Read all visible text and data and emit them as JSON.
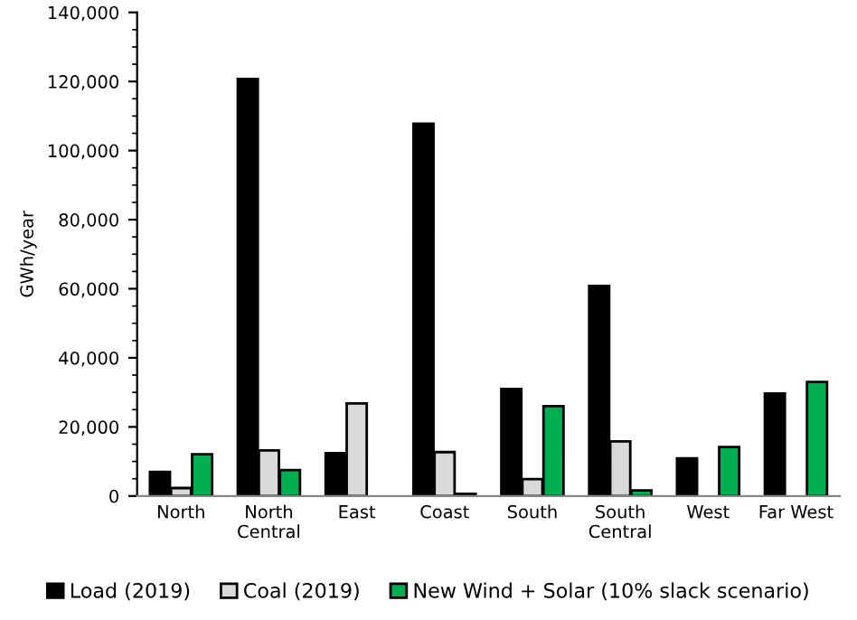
{
  "chart_data": {
    "type": "bar",
    "ylabel": "GWh/year",
    "categories": [
      "North",
      "North\nCentral",
      "East",
      "Coast",
      "South",
      "South\nCentral",
      "West",
      "Far West"
    ],
    "series": [
      {
        "name": "Load (2019)",
        "color": "#000000",
        "values": [
          7000,
          120700,
          12400,
          107800,
          31000,
          60800,
          10900,
          29700
        ]
      },
      {
        "name": "Coal (2019)",
        "color": "#d9d9d9",
        "values": [
          2300,
          13200,
          26800,
          12700,
          4900,
          15800,
          null,
          null
        ]
      },
      {
        "name": "New Wind + Solar (10% slack scenario)",
        "color": "#00b050",
        "values": [
          12100,
          7500,
          null,
          600,
          26000,
          1600,
          14200,
          33000
        ]
      }
    ],
    "ylim": [
      0,
      140000
    ],
    "yticks": [
      {
        "value": 0,
        "label": "0"
      },
      {
        "value": 20000,
        "label": "20,000"
      },
      {
        "value": 40000,
        "label": "40,000"
      },
      {
        "value": 60000,
        "label": "60,000"
      },
      {
        "value": 80000,
        "label": "80,000"
      },
      {
        "value": 100000,
        "label": "100,000"
      },
      {
        "value": 120000,
        "label": "120,000"
      },
      {
        "value": 140000,
        "label": "140,000"
      }
    ],
    "grid": false,
    "legend": "bottom"
  }
}
